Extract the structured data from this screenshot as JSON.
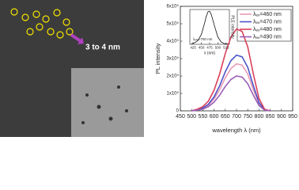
{
  "image": {
    "label": "3 to 4 nm"
  },
  "chart_data": [
    {
      "type": "line",
      "x_label": "wavelength λ (nm)",
      "y_label": "PL intensity",
      "x": [
        500,
        525,
        550,
        575,
        600,
        625,
        650,
        675,
        700,
        725,
        750,
        775,
        800,
        825,
        850
      ],
      "series": [
        {
          "name": "λₑₓ=460 nm",
          "color": "#e89bb5",
          "values": [
            0,
            5000,
            14000,
            32000,
            68000,
            122000,
            189000,
            243000,
            270000,
            262000,
            211000,
            122000,
            41000,
            5000,
            0
          ]
        },
        {
          "name": "λₑₓ=470 nm",
          "color": "#4a55c8",
          "values": [
            0,
            6000,
            16000,
            38000,
            80000,
            144000,
            224000,
            288000,
            320000,
            310000,
            250000,
            144000,
            48000,
            6000,
            0
          ]
        },
        {
          "name": "λₑₓ=480 nm",
          "color": "#d9405a",
          "values": [
            0,
            9000,
            24000,
            56000,
            118000,
            212000,
            329000,
            423000,
            470000,
            456000,
            367000,
            212000,
            71000,
            9000,
            0
          ]
        },
        {
          "name": "λₑₓ=490 nm",
          "color": "#9a5fb8",
          "values": [
            0,
            4000,
            10000,
            24000,
            50000,
            90000,
            140000,
            180000,
            200000,
            194000,
            156000,
            90000,
            30000,
            4000,
            0
          ]
        }
      ],
      "xlim": [
        450,
        950
      ],
      "xticks": [
        450,
        500,
        550,
        600,
        650,
        700,
        750,
        800,
        850,
        900,
        950
      ],
      "ylim": [
        0,
        600000
      ],
      "yticks": [
        0,
        {
          "value": 100000,
          "label": "1x10⁵"
        },
        {
          "value": 200000,
          "label": "2x10⁵"
        },
        {
          "value": 300000,
          "label": "3x10⁵"
        },
        {
          "value": 400000,
          "label": "4x10⁵"
        },
        {
          "value": 500000,
          "label": "5x10⁵"
        },
        {
          "value": 600000,
          "label": "6x10⁵"
        }
      ],
      "legend": "upper right"
    },
    {
      "type": "line",
      "x_label": "λ (nm)",
      "y_label": "PLE intensity",
      "annotation": "λₑₘ=700 nm",
      "x": [
        420,
        430,
        440,
        450,
        460,
        465,
        470,
        475,
        480,
        490,
        500,
        510,
        520,
        530
      ],
      "series": [
        {
          "color": "#111111",
          "values": [
            0.02,
            0.05,
            0.12,
            0.3,
            0.65,
            0.85,
            0.98,
            1.0,
            0.9,
            0.55,
            0.22,
            0.07,
            0.02,
            0.01
          ]
        }
      ],
      "xlim": [
        415,
        535
      ],
      "xticks": [
        425,
        450,
        475,
        500,
        525
      ],
      "ylim": [
        0,
        1.05
      ]
    }
  ]
}
